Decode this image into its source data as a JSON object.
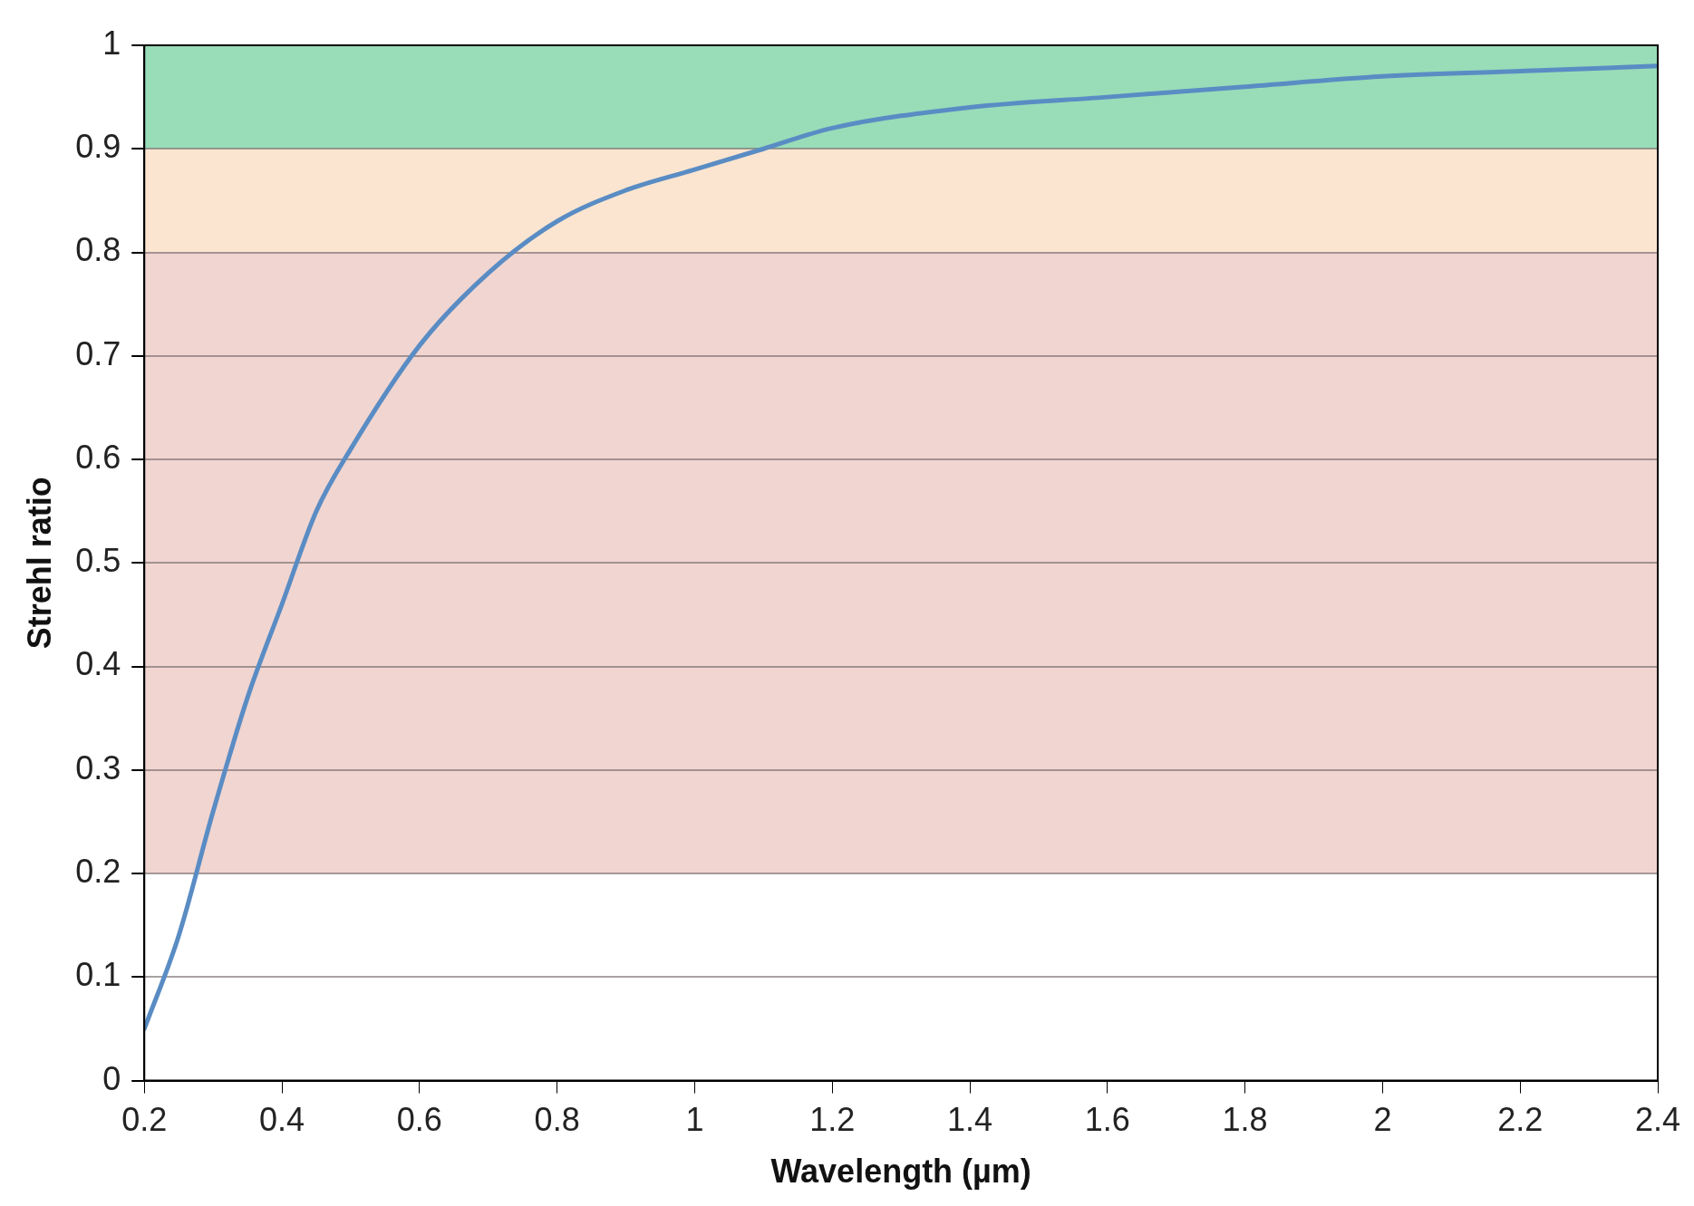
{
  "chart_data": {
    "type": "line",
    "xlabel": "Wavelength (µm)",
    "ylabel": "Strehl ratio",
    "x": [
      0.2,
      0.25,
      0.3,
      0.35,
      0.4,
      0.45,
      0.5,
      0.6,
      0.7,
      0.8,
      0.9,
      1.0,
      1.1,
      1.2,
      1.4,
      1.6,
      1.8,
      2.0,
      2.2,
      2.4
    ],
    "series": [
      {
        "color": "#5a8cc4",
        "values": [
          0.05,
          0.14,
          0.26,
          0.37,
          0.46,
          0.55,
          0.61,
          0.71,
          0.78,
          0.83,
          0.86,
          0.88,
          0.9,
          0.92,
          0.94,
          0.95,
          0.96,
          0.97,
          0.975,
          0.98
        ]
      }
    ],
    "xlim": [
      0.2,
      2.4
    ],
    "xticks": [
      0.2,
      0.4,
      0.6,
      0.8,
      1,
      1.2,
      1.4,
      1.6,
      1.8,
      2,
      2.2,
      2.4
    ],
    "ylim": [
      0,
      1
    ],
    "yticks": [
      0,
      0.1,
      0.2,
      0.3,
      0.4,
      0.5,
      0.6,
      0.7,
      0.8,
      0.9,
      1
    ],
    "bands": [
      {
        "axis": "y",
        "from": 0.9,
        "to": 1,
        "color": "#99dcb8"
      },
      {
        "axis": "y",
        "from": 0.8,
        "to": 0.9,
        "color": "#fbe5d0"
      },
      {
        "axis": "y",
        "from": 0.2,
        "to": 0.8,
        "color": "#f0d5d1"
      }
    ],
    "grid": "y",
    "legend": false,
    "marker": "none",
    "line_style": "solid"
  }
}
